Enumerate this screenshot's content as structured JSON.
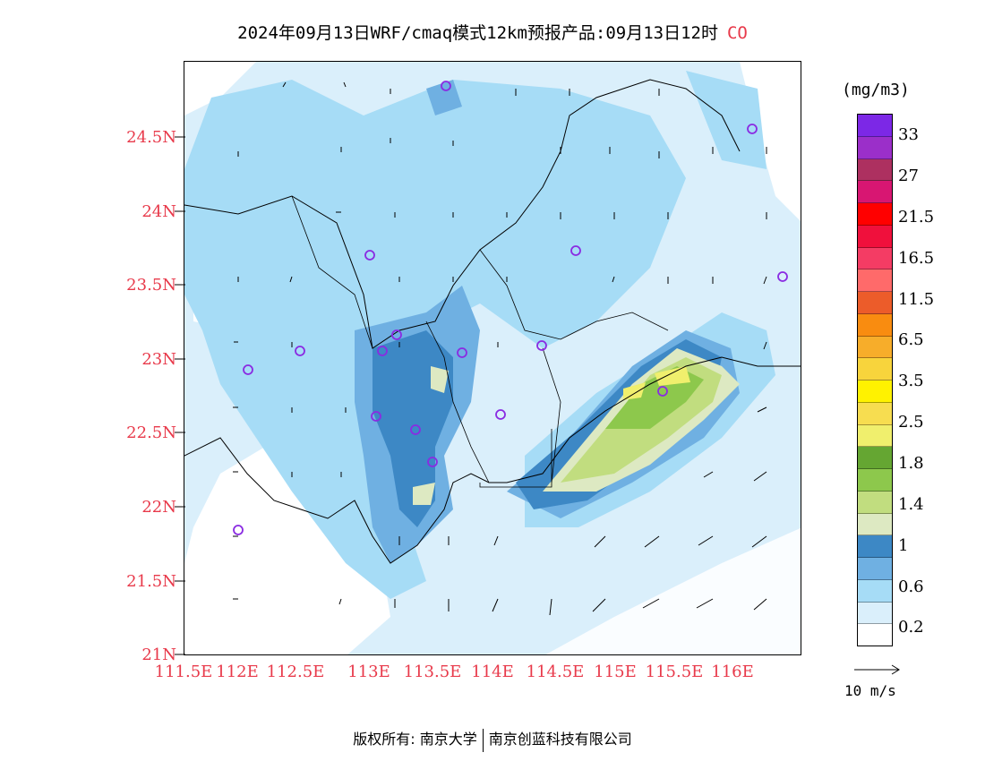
{
  "title": {
    "text": "2024年09月13日WRF/cmaq模式12km预报产品:09月13日12时",
    "species": "CO"
  },
  "map": {
    "lat_labels": [
      "24.5N",
      "24N",
      "23.5N",
      "23N",
      "22.5N",
      "22N",
      "21.5N",
      "21N"
    ],
    "lon_labels": [
      "111.5E",
      "112E",
      "112.5E",
      "113E",
      "113.5E",
      "114E",
      "114.5E",
      "115E",
      "115.5E",
      "116E"
    ]
  },
  "colorbar": {
    "unit": "(mg/m3)",
    "levels": [
      "0.2",
      "0.6",
      "1",
      "1.4",
      "1.8",
      "2.5",
      "3.5",
      "6.5",
      "11.5",
      "16.5",
      "21.5",
      "27",
      "33"
    ],
    "colors_bottom_to_top": [
      "#ffffff",
      "#daeffb",
      "#a6dcf6",
      "#6fb0e2",
      "#3d88c5",
      "#dde9c2",
      "#c1dd7f",
      "#8dc84c",
      "#65a632",
      "#f0ef6d",
      "#f7dd50",
      "#fff200",
      "#f8d43c",
      "#f7ad2a",
      "#f98c10",
      "#ec5c2a",
      "#ff6a6a",
      "#f43c64",
      "#f0103c",
      "#ff0000",
      "#d81672",
      "#ad3060",
      "#9b2fc9",
      "#7c28e6"
    ]
  },
  "wind_reference": {
    "label": "10 m/s"
  },
  "footer": {
    "left": "版权所有: 南京大学",
    "right": "南京创蓝科技有限公司"
  }
}
